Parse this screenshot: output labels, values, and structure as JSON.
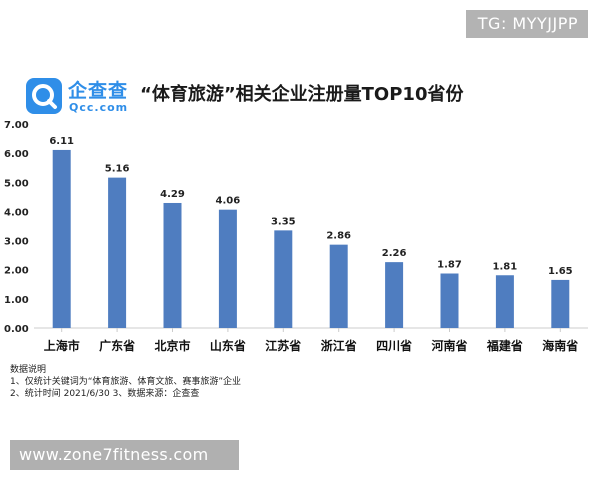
{
  "watermark_top": "TG: MYYJJPP",
  "logo": {
    "name": "企查查",
    "sub": "Qcc.com"
  },
  "notes": {
    "heading": "数据说明",
    "line1": "1、仅统计关键词为“体育旅游、体育文旅、赛事旅游”企业",
    "line2": "2、统计时间 2021/6/30    3、数据来源：企查查"
  },
  "watermark_bottom": "www.zone7fitness.com",
  "colors": {
    "bar": "#4f7dc0",
    "axis": "#cccccc",
    "brand": "#2f8ee8"
  },
  "chart_data": {
    "type": "bar",
    "title": "“体育旅游”相关企业注册量TOP10省份",
    "xlabel": "",
    "ylabel": "",
    "categories": [
      "上海市",
      "广东省",
      "北京市",
      "山东省",
      "江苏省",
      "浙江省",
      "四川省",
      "河南省",
      "福建省",
      "海南省"
    ],
    "values": [
      6.11,
      5.16,
      4.29,
      4.06,
      3.35,
      2.86,
      2.26,
      1.87,
      1.81,
      1.65
    ],
    "ylim": [
      0,
      7
    ],
    "yticks": [
      "0.00",
      "1.00",
      "2.00",
      "3.00",
      "4.00",
      "5.00",
      "6.00",
      "7.00"
    ],
    "data_labels": [
      "6.11",
      "5.16",
      "4.29",
      "4.06",
      "3.35",
      "2.86",
      "2.26",
      "1.87",
      "1.81",
      "1.65"
    ],
    "grid": false,
    "legend": "none"
  }
}
